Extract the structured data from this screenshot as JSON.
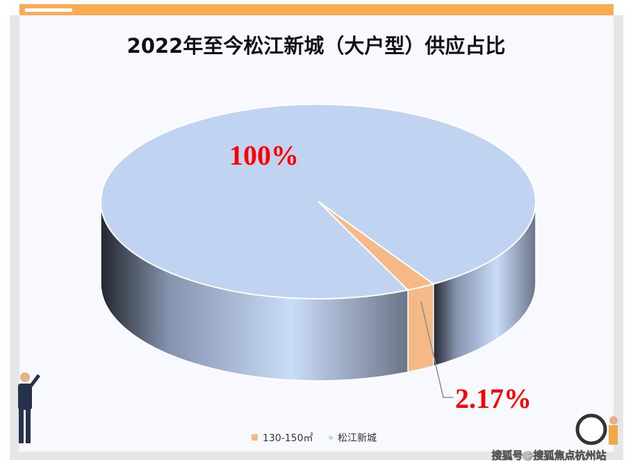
{
  "chart_data": {
    "type": "pie",
    "title": "2022年至今松江新城（大户型）供应占比",
    "categories": [
      "130-150㎡",
      "松江新城"
    ],
    "values": [
      2.17,
      100
    ],
    "value_labels": [
      "2.17%",
      "100%"
    ],
    "colors": [
      "#f5b887",
      "#c0d4f2"
    ],
    "label_color": "#ff0000"
  },
  "watermark": "搜狐号@搜狐焦点杭州站"
}
